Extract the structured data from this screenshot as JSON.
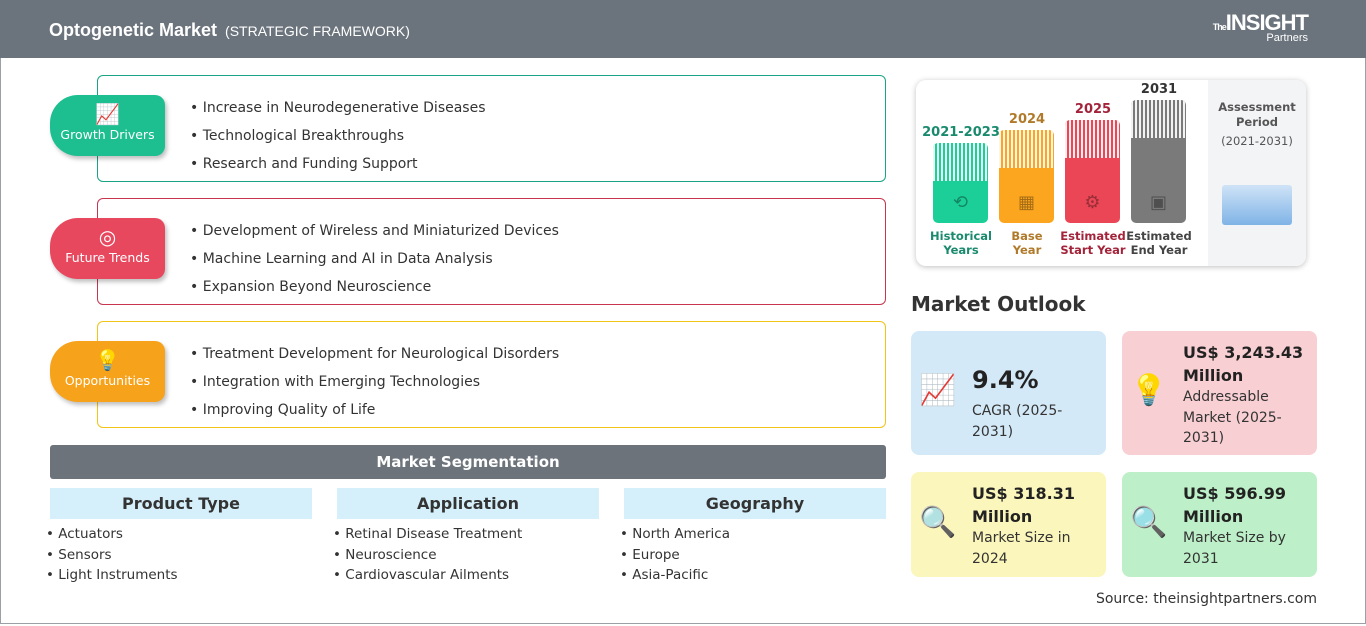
{
  "header": {
    "title": "Optogenetic Market",
    "subtitle": "(STRATEGIC FRAMEWORK)",
    "logo": {
      "the": "The",
      "insight": "INSIGHT",
      "partners": "Partners"
    }
  },
  "framework": [
    {
      "label": "Growth Drivers",
      "icon": "growth-chart-icon",
      "color": "#1dbf90",
      "border": "#1aa385",
      "items": [
        "Increase in Neurodegenerative Diseases",
        "Technological Breakthroughs",
        "Research and Funding Support"
      ]
    },
    {
      "label": "Future Trends",
      "icon": "target-icon",
      "color": "#e8485e",
      "border": "#c8354f",
      "items": [
        "Development of Wireless and Miniaturized Devices",
        "Machine Learning and AI in Data Analysis",
        "Expansion Beyond Neuroscience"
      ]
    },
    {
      "label": "Opportunities",
      "icon": "lightbulb-hand-icon",
      "color": "#f7a21b",
      "border": "#f0c419",
      "items": [
        "Treatment Development for Neurological Disorders",
        "Integration with Emerging Technologies",
        "Improving Quality of Life"
      ]
    }
  ],
  "segmentation": {
    "title": "Market Segmentation",
    "columns": [
      {
        "header": "Product Type",
        "items": [
          "Actuators",
          "Sensors",
          "Light Instruments"
        ]
      },
      {
        "header": "Application",
        "items": [
          "Retinal Disease Treatment",
          "Neuroscience",
          "Cardiovascular Ailments"
        ]
      },
      {
        "header": "Geography",
        "items": [
          "North America",
          "Europe",
          "Asia-Pacific"
        ]
      }
    ]
  },
  "timeline": {
    "periods": [
      {
        "year": "2021-2023",
        "label1": "Historical",
        "label2": "Years",
        "color": "#1ccf98",
        "text_color": "#1a8a6e",
        "icon": "history-icon"
      },
      {
        "year": "2024",
        "label1": "Base",
        "label2": "Year",
        "color": "#fca61f",
        "text_color": "#b07a2a",
        "icon": "calendar-icon"
      },
      {
        "year": "2025",
        "label1": "Estimated",
        "label2": "Start Year",
        "color": "#ea4656",
        "text_color": "#a3243a",
        "icon": "monitor-settings-icon"
      },
      {
        "year": "2031",
        "label1": "Estimated",
        "label2": "End Year",
        "color": "#7a7a7a",
        "text_color": "#444444",
        "icon": "presentation-icon"
      }
    ],
    "assessment": {
      "line1": "Assessment",
      "line2": "Period",
      "line3": "(2021-2031)"
    }
  },
  "outlook": {
    "title": "Market Outlook",
    "cards": [
      {
        "value": "9.4%",
        "desc": "CAGR (2025-2031)",
        "bg": "#d4e9f7",
        "icon": "growth-chart-icon"
      },
      {
        "value": "US$ 3,243.43 Million",
        "desc": "Addressable Market (2025-2031)",
        "bg": "#f8cfd3",
        "icon": "dollar-lightbulb-icon"
      },
      {
        "value": "US$ 318.31 Million",
        "desc": "Market Size in 2024",
        "bg": "#fbf6bb",
        "icon": "magnifier-chart-icon"
      },
      {
        "value": "US$ 596.99 Million",
        "desc": "Market Size by 2031",
        "bg": "#bdf0c8",
        "icon": "magnifier-chart-icon"
      }
    ]
  },
  "source": "Source: theinsightpartners.com"
}
